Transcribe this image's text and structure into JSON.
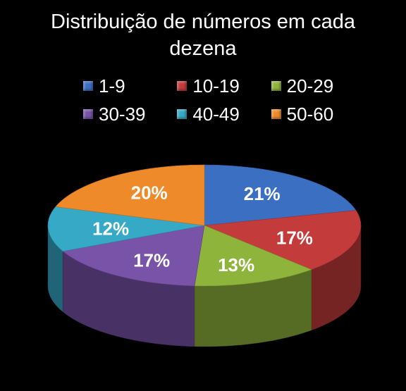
{
  "chart_data": {
    "type": "pie",
    "title_lines": [
      "Distribuição de números em cada",
      "dezena"
    ],
    "categories": [
      "1-9",
      "10-19",
      "20-29",
      "30-39",
      "40-49",
      "50-60"
    ],
    "values": [
      21,
      17,
      13,
      17,
      12,
      20
    ],
    "labels": [
      "21%",
      "17%",
      "13%",
      "17%",
      "12%",
      "20%"
    ],
    "colors": [
      "#3b6fc2",
      "#c43b3b",
      "#8fb43c",
      "#7853a8",
      "#35a9c6",
      "#ee8a2a"
    ],
    "legend_position": "top",
    "style": "3d"
  }
}
